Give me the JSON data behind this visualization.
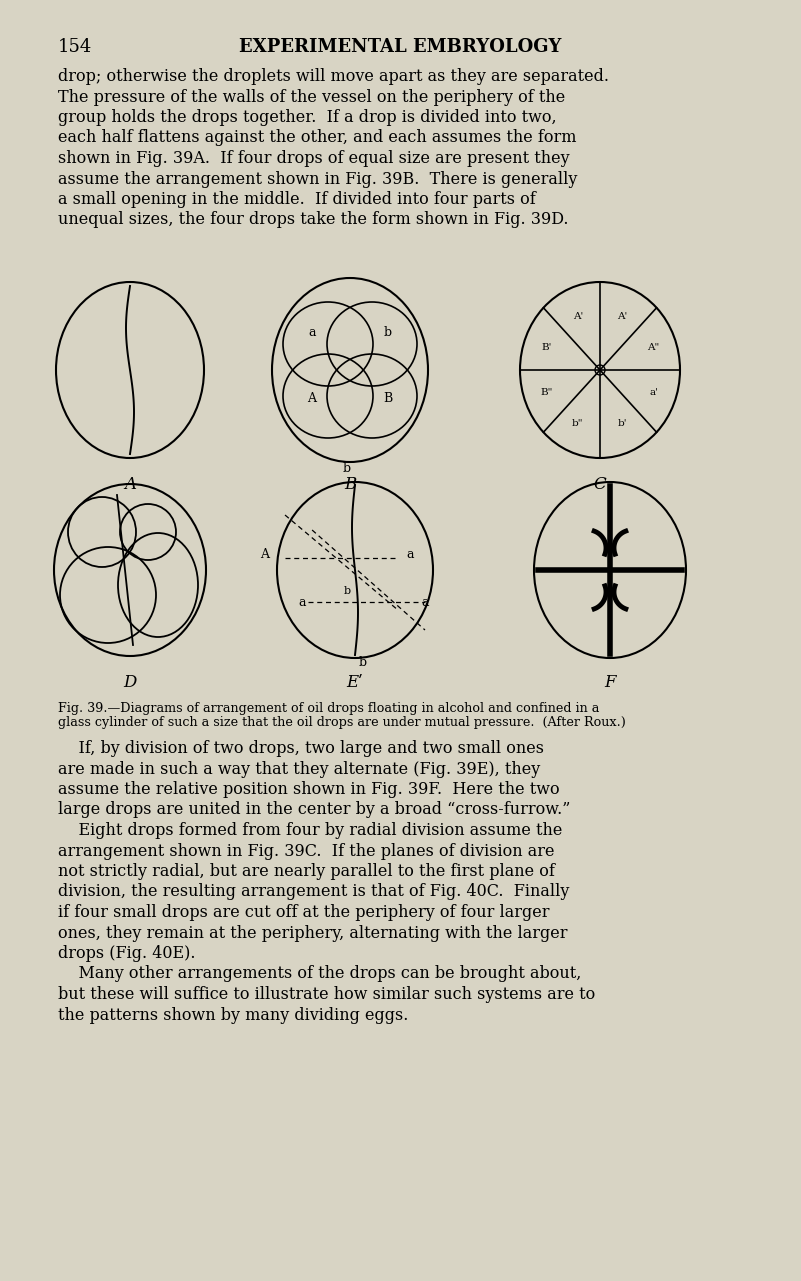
{
  "bg_color": "#d8d4c4",
  "page_number": "154",
  "header_title": "EXPERIMENTAL EMBRYOLOGY",
  "caption_line1": "Fig. 39.—Diagrams of arrangement of oil drops floating in alcohol and confined in a",
  "caption_line2": "glass cylinder of such a size that the oil drops are under mutual pressure.  (After Roux.)",
  "para1_lines": [
    "drop; otherwise the droplets will move apart as they are separated.",
    "The pressure of the walls of the vessel on the periphery of the",
    "group holds the drops together.  If a drop is divided into two,",
    "each half flattens against the other, and each assumes the form",
    "shown in Fig. 39A.  If four drops of equal size are present they",
    "assume the arrangement shown in Fig. 39B.  There is generally",
    "a small opening in the middle.  If divided into four parts of",
    "unequal sizes, the four drops take the form shown in Fig. 39D."
  ],
  "para2_lines": [
    "    If, by division of two drops, two large and two small ones",
    "are made in such a way that they alternate (Fig. 39E), they",
    "assume the relative position shown in Fig. 39F.  Here the two",
    "large drops are united in the center by a broad “cross-furrow.”",
    "    Eight drops formed from four by radial division assume the",
    "arrangement shown in Fig. 39C.  If the planes of division are",
    "not strictly radial, but are nearly parallel to the first plane of",
    "division, the resulting arrangement is that of Fig. 40C.  Finally",
    "if four small drops are cut off at the periphery of four larger",
    "ones, they remain at the periphery, alternating with the larger",
    "drops (Fig. 40E).",
    "    Many other arrangements of the drops can be brought about,",
    "but these will suffice to illustrate how similar such systems are to",
    "the patterns shown by many dividing eggs."
  ]
}
